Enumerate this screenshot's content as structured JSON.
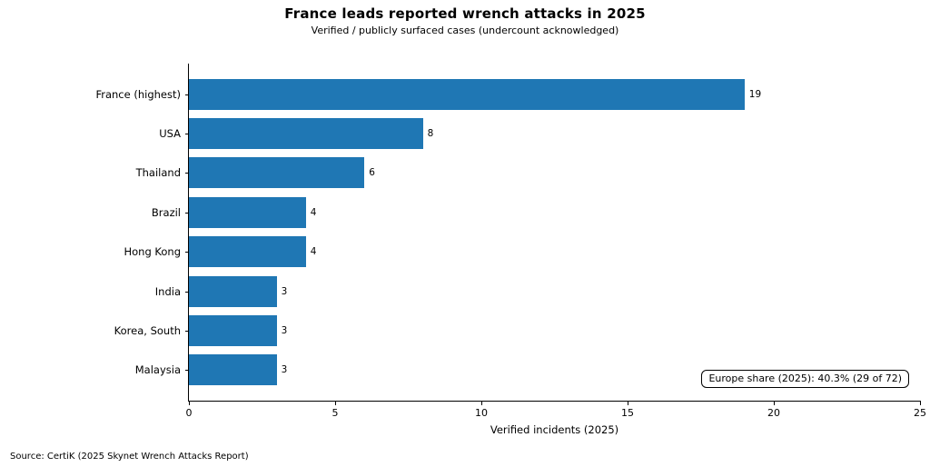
{
  "chart_data": {
    "type": "bar",
    "orientation": "horizontal",
    "title": "France leads reported wrench attacks in 2025",
    "subtitle": "Verified / publicly surfaced cases (undercount acknowledged)",
    "categories": [
      "France (highest)",
      "USA",
      "Thailand",
      "Brazil",
      "Hong Kong",
      "India",
      "Korea, South",
      "Malaysia"
    ],
    "values": [
      19,
      8,
      6,
      4,
      4,
      3,
      3,
      3
    ],
    "xlabel": "Verified incidents (2025)",
    "ylabel": "",
    "xlim": [
      0,
      25
    ],
    "xticks": [
      0,
      5,
      10,
      15,
      20,
      25
    ],
    "bar_color": "#1f77b4",
    "axis_color": "#000000",
    "grid": false,
    "legend": false,
    "annotation": "Europe share (2025): 40.3% (29 of 72)",
    "source": "Source: CertiK (2025 Skynet Wrench Attacks Report)"
  }
}
